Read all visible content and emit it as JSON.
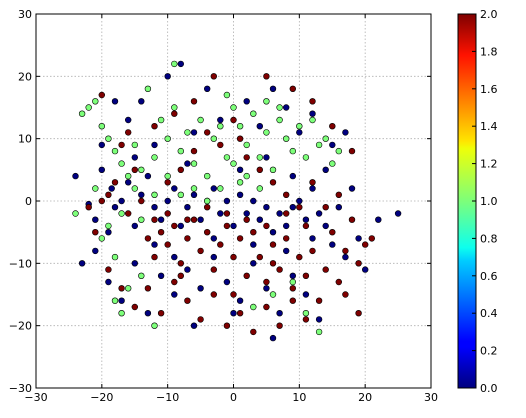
{
  "chart_data": {
    "type": "scatter",
    "title": "",
    "xlabel": "",
    "ylabel": "",
    "xlim": [
      -30,
      30
    ],
    "ylim": [
      -30,
      30
    ],
    "xticks": [
      -30,
      -20,
      -10,
      0,
      10,
      20,
      30
    ],
    "yticks": [
      -30,
      -20,
      -10,
      0,
      10,
      20,
      30
    ],
    "grid": true,
    "colormap": "jet",
    "color_range": [
      0.0,
      2.0
    ],
    "colorbar_ticks": [
      "0.0",
      "0.2",
      "0.4",
      "0.6",
      "0.8",
      "1.0",
      "1.2",
      "1.4",
      "1.6",
      "1.8",
      "2.0"
    ],
    "class_colors": {
      "0": "#00007f",
      "1": "#7dff7a",
      "2": "#7f0000"
    },
    "series": [
      {
        "value": 0,
        "points": [
          [
            -22,
            -0.5
          ],
          [
            -21,
            -3
          ],
          [
            -20,
            5
          ],
          [
            -19,
            -5
          ],
          [
            -18.5,
            2
          ],
          [
            -17,
            0
          ],
          [
            -16,
            3
          ],
          [
            -15,
            -4
          ],
          [
            -14,
            1
          ],
          [
            -13,
            4
          ],
          [
            -12,
            -1
          ],
          [
            -11,
            -3
          ],
          [
            -10,
            0
          ],
          [
            -9,
            2
          ],
          [
            -8,
            -4
          ],
          [
            -7,
            -1
          ],
          [
            -6,
            1
          ],
          [
            -5,
            -3
          ],
          [
            -4,
            0
          ],
          [
            -3,
            2
          ],
          [
            -2,
            -2
          ],
          [
            -1,
            0
          ],
          [
            0,
            -4
          ],
          [
            1,
            1
          ],
          [
            2,
            -2
          ],
          [
            3,
            0
          ],
          [
            4,
            -3
          ],
          [
            5,
            -1
          ],
          [
            6,
            -5
          ],
          [
            7,
            -2
          ],
          [
            8,
            -4
          ],
          [
            9,
            -1
          ],
          [
            10,
            0
          ],
          [
            11,
            -3
          ],
          [
            12,
            -6
          ],
          [
            13,
            -2
          ],
          [
            14,
            -4
          ],
          [
            15,
            -7
          ],
          [
            16,
            -1
          ],
          [
            17,
            -9
          ],
          [
            -21,
            -8
          ],
          [
            -19,
            -13
          ],
          [
            -17,
            -16
          ],
          [
            -15,
            -10
          ],
          [
            -13,
            -18
          ],
          [
            -11,
            -12
          ],
          [
            -9,
            -15
          ],
          [
            -7,
            -11
          ],
          [
            -5,
            -14
          ],
          [
            -3,
            -9
          ],
          [
            -1,
            -13
          ],
          [
            1,
            -16
          ],
          [
            3,
            -10
          ],
          [
            5,
            -14
          ],
          [
            7,
            -18
          ],
          [
            9,
            -12
          ],
          [
            11,
            -15
          ],
          [
            13,
            -19
          ],
          [
            -6,
            -20
          ],
          [
            0,
            -18
          ],
          [
            6,
            -22
          ],
          [
            -16,
            13
          ],
          [
            -14,
            16
          ],
          [
            -10,
            20
          ],
          [
            -8,
            22
          ],
          [
            -4,
            18
          ],
          [
            -2,
            13
          ],
          [
            2,
            16
          ],
          [
            4,
            12
          ],
          [
            6,
            18
          ],
          [
            8,
            15
          ],
          [
            10,
            11
          ],
          [
            12,
            14
          ],
          [
            15,
            9
          ],
          [
            17,
            11
          ],
          [
            -18,
            16
          ],
          [
            -20,
            9
          ],
          [
            -12,
            9
          ],
          [
            -6,
            11
          ],
          [
            25,
            -2
          ],
          [
            22,
            -3
          ],
          [
            18,
            2
          ],
          [
            14,
            5
          ],
          [
            -24,
            4
          ],
          [
            -23,
            -10
          ],
          [
            19,
            -6
          ],
          [
            20,
            -11
          ],
          [
            -9,
            -9
          ],
          [
            -3,
            -6
          ],
          [
            3,
            -7
          ],
          [
            8,
            -8
          ],
          [
            -12,
            -7
          ],
          [
            -7,
            6
          ],
          [
            1,
            5
          ],
          [
            5,
            7
          ],
          [
            9,
            4
          ],
          [
            12,
            2
          ],
          [
            -15,
            7
          ],
          [
            -18,
            -1
          ]
        ]
      },
      {
        "value": 1,
        "points": [
          [
            -22,
            15
          ],
          [
            -21,
            16
          ],
          [
            -20,
            12
          ],
          [
            -19,
            10
          ],
          [
            -18,
            8
          ],
          [
            -17,
            6
          ],
          [
            -16,
            4
          ],
          [
            -15,
            2
          ],
          [
            -14,
            -3
          ],
          [
            -20,
            -6
          ],
          [
            -18,
            -9
          ],
          [
            -12,
            7
          ],
          [
            -10,
            10
          ],
          [
            -8,
            8
          ],
          [
            -6,
            6
          ],
          [
            -4,
            4
          ],
          [
            -2,
            2
          ],
          [
            0,
            6
          ],
          [
            0,
            15
          ],
          [
            1,
            12
          ],
          [
            2,
            9
          ],
          [
            3,
            14
          ],
          [
            4,
            7
          ],
          [
            5,
            11
          ],
          [
            6,
            5
          ],
          [
            7,
            13
          ],
          [
            8,
            10
          ],
          [
            9,
            8
          ],
          [
            10,
            12
          ],
          [
            11,
            7
          ],
          [
            12,
            13
          ],
          [
            13,
            9
          ],
          [
            15,
            6
          ],
          [
            16,
            8
          ],
          [
            -3,
            10
          ],
          [
            -5,
            13
          ],
          [
            -7,
            11
          ],
          [
            -9,
            15
          ],
          [
            -11,
            13
          ],
          [
            -13,
            18
          ],
          [
            -15,
            9
          ],
          [
            -17,
            -2
          ],
          [
            -19,
            -4
          ],
          [
            -21,
            2
          ],
          [
            -16,
            -14
          ],
          [
            -18,
            -16
          ],
          [
            -17,
            -18
          ],
          [
            -14,
            -12
          ],
          [
            -12,
            -20
          ],
          [
            3,
            -17
          ],
          [
            6,
            -15
          ],
          [
            9,
            -13
          ],
          [
            11,
            -18
          ],
          [
            13,
            -21
          ],
          [
            -1,
            7
          ],
          [
            -2,
            12
          ],
          [
            1,
            3
          ],
          [
            2,
            4
          ],
          [
            4,
            2
          ],
          [
            -8,
            1
          ],
          [
            -6,
            2
          ],
          [
            -4,
            0
          ],
          [
            -10,
            4
          ],
          [
            -12,
            1
          ],
          [
            -14,
            5
          ],
          [
            -1,
            17
          ],
          [
            5,
            16
          ],
          [
            7,
            15
          ],
          [
            -9,
            22
          ],
          [
            14,
            10
          ],
          [
            -23,
            14
          ],
          [
            -24,
            -2
          ]
        ]
      },
      {
        "value": 2,
        "points": [
          [
            -22,
            -1
          ],
          [
            -20,
            0
          ],
          [
            -18,
            3
          ],
          [
            -16,
            -2
          ],
          [
            -14,
            0
          ],
          [
            -13,
            -6
          ],
          [
            -12,
            -9
          ],
          [
            -11,
            -5
          ],
          [
            -10,
            -7
          ],
          [
            -9,
            -4
          ],
          [
            -8,
            -10
          ],
          [
            -7,
            -6
          ],
          [
            -6,
            -3
          ],
          [
            -5,
            -8
          ],
          [
            -4,
            -5
          ],
          [
            -3,
            -11
          ],
          [
            -2,
            -7
          ],
          [
            -1,
            -4
          ],
          [
            0,
            -9
          ],
          [
            1,
            -6
          ],
          [
            2,
            -12
          ],
          [
            3,
            -5
          ],
          [
            4,
            -9
          ],
          [
            5,
            -13
          ],
          [
            6,
            -7
          ],
          [
            7,
            -11
          ],
          [
            8,
            -6
          ],
          [
            9,
            -14
          ],
          [
            10,
            -9
          ],
          [
            11,
            -12
          ],
          [
            12,
            -8
          ],
          [
            13,
            -16
          ],
          [
            14,
            -11
          ],
          [
            15,
            -5
          ],
          [
            16,
            -13
          ],
          [
            17,
            -8
          ],
          [
            18,
            -3
          ],
          [
            19,
            -10
          ],
          [
            20,
            -7
          ],
          [
            21,
            -6
          ],
          [
            -19,
            -11
          ],
          [
            -17,
            -14
          ],
          [
            -15,
            -17
          ],
          [
            -13,
            -14
          ],
          [
            -11,
            -18
          ],
          [
            -9,
            -13
          ],
          [
            -7,
            -16
          ],
          [
            -5,
            -19
          ],
          [
            -3,
            -15
          ],
          [
            -1,
            -20
          ],
          [
            1,
            -18
          ],
          [
            3,
            -21
          ],
          [
            5,
            -17
          ],
          [
            7,
            -20
          ],
          [
            9,
            -16
          ],
          [
            11,
            -19
          ],
          [
            -10,
            3
          ],
          [
            -8,
            5
          ],
          [
            -6,
            8
          ],
          [
            -4,
            11
          ],
          [
            -2,
            9
          ],
          [
            0,
            13
          ],
          [
            2,
            7
          ],
          [
            4,
            5
          ],
          [
            6,
            3
          ],
          [
            8,
            1
          ],
          [
            10,
            -1
          ],
          [
            12,
            3
          ],
          [
            14,
            -1
          ],
          [
            16,
            1
          ],
          [
            -15,
            5
          ],
          [
            -17,
            9
          ],
          [
            -19,
            1
          ],
          [
            -21,
            -5
          ],
          [
            -12,
            12
          ],
          [
            -9,
            14
          ],
          [
            -6,
            16
          ],
          [
            -3,
            20
          ],
          [
            1,
            10
          ],
          [
            5,
            20
          ],
          [
            9,
            18
          ],
          [
            12,
            16
          ],
          [
            15,
            12
          ],
          [
            18,
            8
          ],
          [
            -20,
            17
          ],
          [
            -16,
            11
          ],
          [
            17,
            -15
          ],
          [
            19,
            -18
          ],
          [
            -10,
            -2
          ],
          [
            -7,
            -3
          ],
          [
            -4,
            -1
          ],
          [
            -1,
            -2
          ],
          [
            2,
            -3
          ],
          [
            5,
            -4
          ],
          [
            8,
            -2
          ],
          [
            11,
            -4
          ],
          [
            -12,
            -3
          ],
          [
            -8,
            -12
          ],
          [
            0,
            -15
          ],
          [
            6,
            -10
          ]
        ]
      }
    ]
  }
}
